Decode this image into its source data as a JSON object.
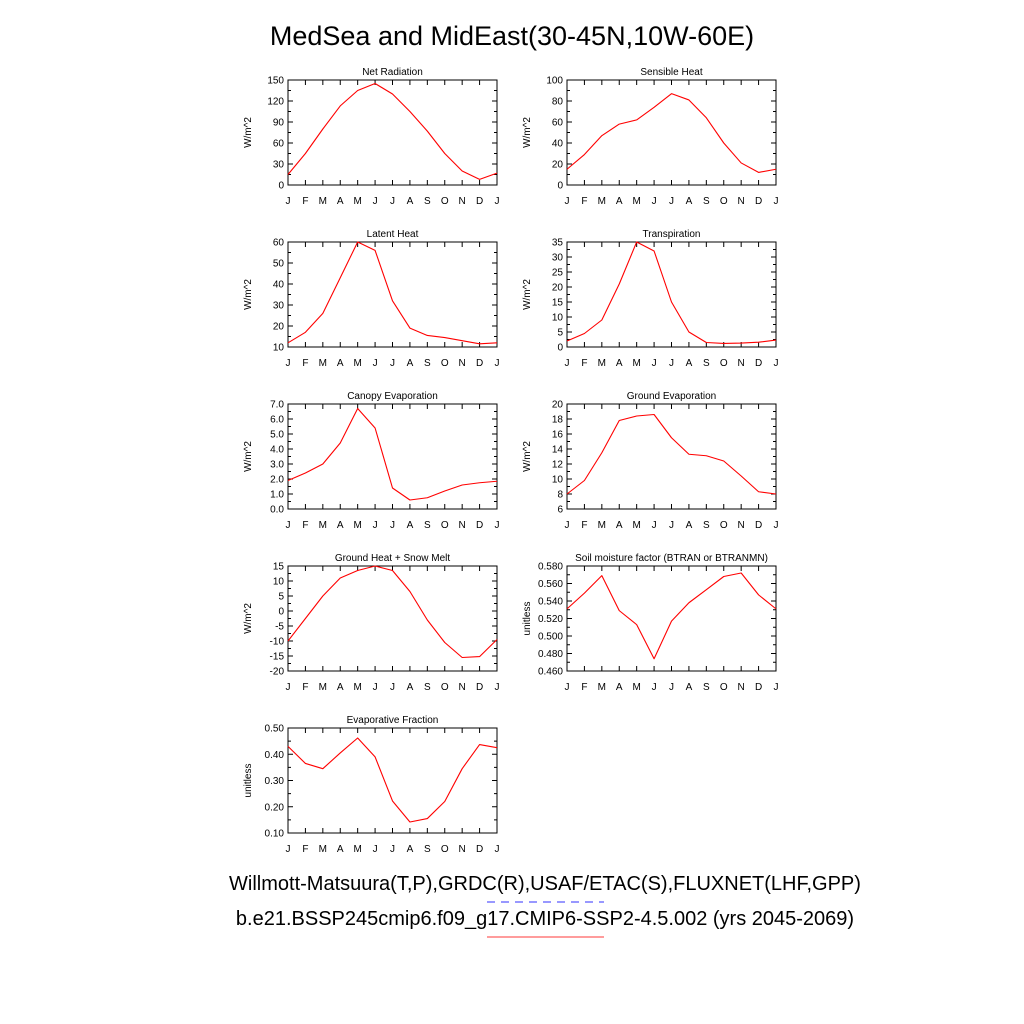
{
  "page": {
    "title": "MedSea and MidEast(30-45N,10W-60E)",
    "legend": [
      {
        "label": "Willmott-Matsuura(T,P),GRDC(R),USAF/ETAC(S),FLUXNET(LHF,GPP)",
        "color": "#5a5aff",
        "dash": "dashed"
      },
      {
        "label": "b.e21.BSSP245cmip6.f09_g17.CMIP6-SSP2-4.5.002 (yrs 2045-2069)",
        "color": "#ff6060",
        "dash": "solid"
      }
    ]
  },
  "chart_data": [
    {
      "type": "line",
      "title": "Net Radiation",
      "ylabel": "W/m^2",
      "categories": [
        "J",
        "F",
        "M",
        "A",
        "M",
        "J",
        "J",
        "A",
        "S",
        "O",
        "N",
        "D",
        "J"
      ],
      "ylim": [
        0,
        150
      ],
      "yticks": [
        0,
        30,
        60,
        90,
        120,
        150
      ],
      "ytick_labels": [
        "0",
        "30",
        "60",
        "90",
        "120",
        "150"
      ],
      "series": [
        {
          "color": "#ff0000",
          "values": [
            15,
            45,
            80,
            113,
            135,
            145,
            130,
            105,
            77,
            45,
            20,
            8,
            17
          ]
        }
      ]
    },
    {
      "type": "line",
      "title": "Sensible Heat",
      "ylabel": "W/m^2",
      "categories": [
        "J",
        "F",
        "M",
        "A",
        "M",
        "J",
        "J",
        "A",
        "S",
        "O",
        "N",
        "D",
        "J"
      ],
      "ylim": [
        0,
        100
      ],
      "yticks": [
        0,
        20,
        40,
        60,
        80,
        100
      ],
      "ytick_labels": [
        "0",
        "20",
        "40",
        "60",
        "80",
        "100"
      ],
      "series": [
        {
          "color": "#ff0000",
          "values": [
            15,
            29,
            47,
            58,
            62,
            74,
            87,
            81,
            64,
            40,
            21,
            12,
            15
          ]
        }
      ]
    },
    {
      "type": "line",
      "title": "Latent Heat",
      "ylabel": "W/m^2",
      "categories": [
        "J",
        "F",
        "M",
        "A",
        "M",
        "J",
        "J",
        "A",
        "S",
        "O",
        "N",
        "D",
        "J"
      ],
      "ylim": [
        10,
        60
      ],
      "yticks": [
        10,
        20,
        30,
        40,
        50,
        60
      ],
      "ytick_labels": [
        "10",
        "20",
        "30",
        "40",
        "50",
        "60"
      ],
      "series": [
        {
          "color": "#ff0000",
          "values": [
            12,
            17,
            26,
            43,
            60,
            56,
            32,
            19,
            15.5,
            14.5,
            13,
            11.5,
            12
          ]
        }
      ]
    },
    {
      "type": "line",
      "title": "Transpiration",
      "ylabel": "W/m^2",
      "categories": [
        "J",
        "F",
        "M",
        "A",
        "M",
        "J",
        "J",
        "A",
        "S",
        "O",
        "N",
        "D",
        "J"
      ],
      "ylim": [
        0,
        35
      ],
      "yticks": [
        0,
        5,
        10,
        15,
        20,
        25,
        30,
        35
      ],
      "ytick_labels": [
        "0",
        "5",
        "10",
        "15",
        "20",
        "25",
        "30",
        "35"
      ],
      "series": [
        {
          "color": "#ff0000",
          "values": [
            2,
            4.5,
            9,
            21,
            35,
            32,
            15,
            5,
            1.5,
            1.2,
            1.3,
            1.6,
            2.3
          ]
        }
      ]
    },
    {
      "type": "line",
      "title": "Canopy Evaporation",
      "ylabel": "W/m^2",
      "categories": [
        "J",
        "F",
        "M",
        "A",
        "M",
        "J",
        "J",
        "A",
        "S",
        "O",
        "N",
        "D",
        "J"
      ],
      "ylim": [
        0,
        7
      ],
      "yticks": [
        0,
        1,
        2,
        3,
        4,
        5,
        6,
        7
      ],
      "ytick_labels": [
        "0.0",
        "1.0",
        "2.0",
        "3.0",
        "4.0",
        "5.0",
        "6.0",
        "7.0"
      ],
      "series": [
        {
          "color": "#ff0000",
          "values": [
            1.9,
            2.4,
            3.0,
            4.4,
            6.7,
            5.4,
            1.4,
            0.6,
            0.75,
            1.2,
            1.6,
            1.75,
            1.85
          ]
        }
      ]
    },
    {
      "type": "line",
      "title": "Ground Evaporation",
      "ylabel": "W/m^2",
      "categories": [
        "J",
        "F",
        "M",
        "A",
        "M",
        "J",
        "J",
        "A",
        "S",
        "O",
        "N",
        "D",
        "J"
      ],
      "ylim": [
        6,
        20
      ],
      "yticks": [
        6,
        8,
        10,
        12,
        14,
        16,
        18,
        20
      ],
      "ytick_labels": [
        "6",
        "8",
        "10",
        "12",
        "14",
        "16",
        "18",
        "20"
      ],
      "series": [
        {
          "color": "#ff0000",
          "values": [
            8,
            9.8,
            13.5,
            17.8,
            18.4,
            18.6,
            15.5,
            13.3,
            13.1,
            12.4,
            10.4,
            8.3,
            8
          ]
        }
      ]
    },
    {
      "type": "line",
      "title": "Ground Heat + Snow Melt",
      "ylabel": "W/m^2",
      "categories": [
        "J",
        "F",
        "M",
        "A",
        "M",
        "J",
        "J",
        "A",
        "S",
        "O",
        "N",
        "D",
        "J"
      ],
      "ylim": [
        -20,
        15
      ],
      "yticks": [
        -20,
        -15,
        -10,
        -5,
        0,
        5,
        10,
        15
      ],
      "ytick_labels": [
        "-20",
        "-15",
        "-10",
        "-5",
        "0",
        "5",
        "10",
        "15"
      ],
      "series": [
        {
          "color": "#ff0000",
          "values": [
            -10,
            -2.5,
            5,
            11,
            13.5,
            15,
            13.5,
            6.5,
            -3,
            -10.5,
            -15.5,
            -15.2,
            -9.5
          ]
        }
      ]
    },
    {
      "type": "line",
      "title": "Soil moisture factor (BTRAN or BTRANMN)",
      "ylabel": "unitless",
      "categories": [
        "J",
        "F",
        "M",
        "A",
        "M",
        "J",
        "J",
        "A",
        "S",
        "O",
        "N",
        "D",
        "J"
      ],
      "ylim": [
        0.46,
        0.58
      ],
      "yticks": [
        0.46,
        0.48,
        0.5,
        0.52,
        0.54,
        0.56,
        0.58
      ],
      "ytick_labels": [
        "0.460",
        "0.480",
        "0.500",
        "0.520",
        "0.540",
        "0.560",
        "0.580"
      ],
      "series": [
        {
          "color": "#ff0000",
          "values": [
            0.531,
            0.549,
            0.569,
            0.529,
            0.513,
            0.474,
            0.517,
            0.538,
            0.553,
            0.568,
            0.572,
            0.547,
            0.531
          ]
        }
      ]
    },
    {
      "type": "line",
      "title": "Evaporative Fraction",
      "ylabel": "unitless",
      "categories": [
        "J",
        "F",
        "M",
        "A",
        "M",
        "J",
        "J",
        "A",
        "S",
        "O",
        "N",
        "D",
        "J"
      ],
      "ylim": [
        0.1,
        0.5
      ],
      "yticks": [
        0.1,
        0.2,
        0.3,
        0.4,
        0.5
      ],
      "ytick_labels": [
        "0.10",
        "0.20",
        "0.30",
        "0.40",
        "0.50"
      ],
      "series": [
        {
          "color": "#ff0000",
          "values": [
            0.43,
            0.365,
            0.345,
            0.405,
            0.462,
            0.39,
            0.222,
            0.142,
            0.155,
            0.22,
            0.345,
            0.437,
            0.425
          ]
        }
      ]
    }
  ]
}
